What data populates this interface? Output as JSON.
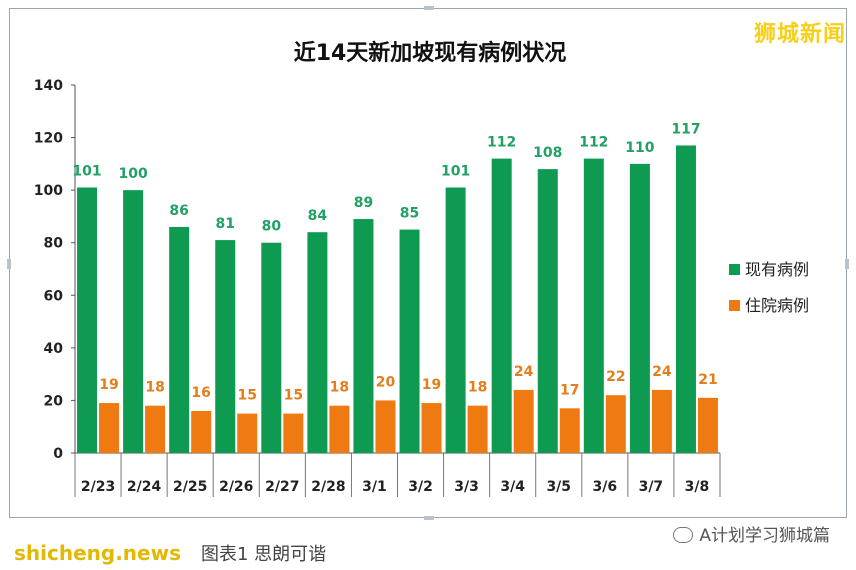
{
  "chart_data": {
    "type": "bar",
    "title": "近14天新加坡现有病例状况",
    "categories": [
      "2/23",
      "2/24",
      "2/25",
      "2/26",
      "2/27",
      "2/28",
      "3/1",
      "3/2",
      "3/3",
      "3/4",
      "3/5",
      "3/6",
      "3/7",
      "3/8"
    ],
    "series": [
      {
        "name": "现有病例",
        "color": "#0f9a52",
        "label_color": "#21a163",
        "values": [
          101,
          100,
          86,
          81,
          80,
          84,
          89,
          85,
          101,
          112,
          108,
          112,
          110,
          117
        ]
      },
      {
        "name": "住院病例",
        "color": "#f07a12",
        "label_color": "#e27f1b",
        "values": [
          19,
          18,
          16,
          15,
          15,
          18,
          20,
          19,
          18,
          24,
          17,
          22,
          24,
          21
        ]
      }
    ],
    "ylim": [
      0,
      140
    ],
    "yticks": [
      0,
      20,
      40,
      60,
      80,
      100,
      120,
      140
    ],
    "legend_position": "right"
  },
  "watermarks": {
    "brand": "狮城新闻",
    "left": "shicheng.news",
    "left_cn": "图表1 思朗可谐",
    "right": "A计划学习狮城篇"
  }
}
